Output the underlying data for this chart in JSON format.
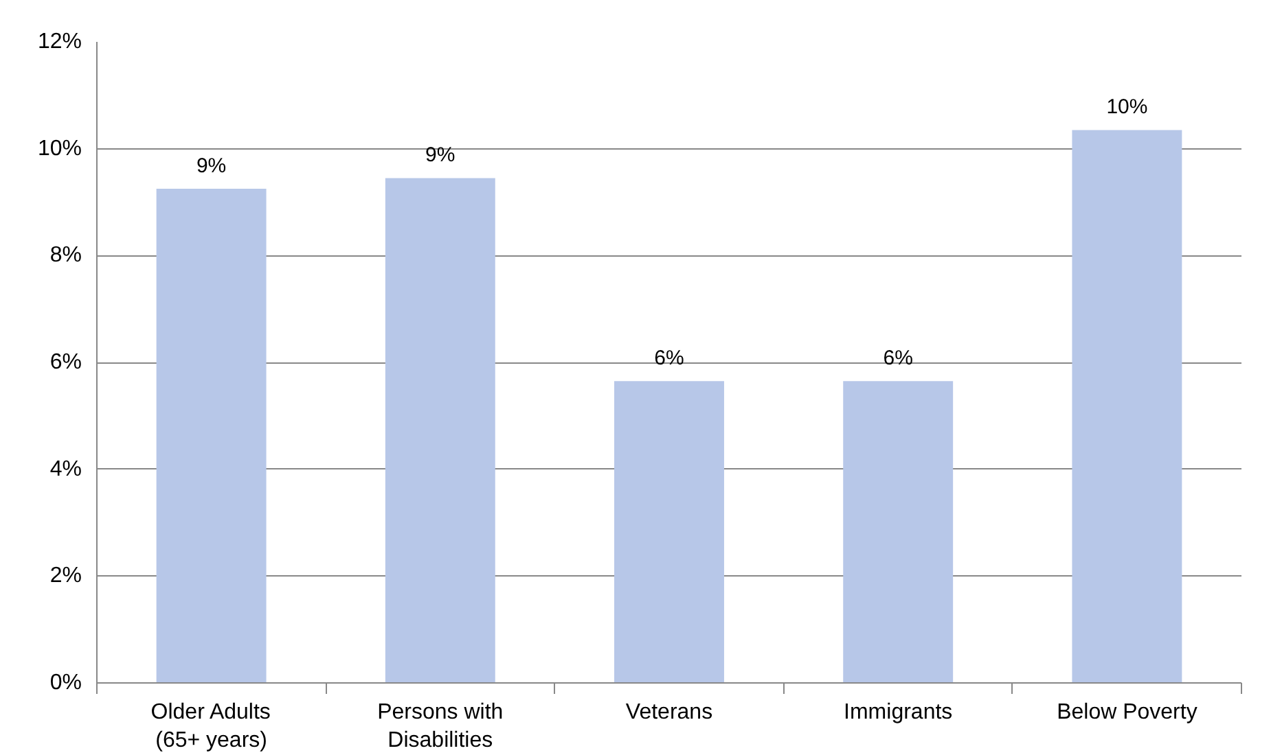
{
  "chart_data": {
    "type": "bar",
    "categories": [
      "Older Adults\n(65+ years)",
      "Persons with\nDisabilities",
      "Veterans",
      "Immigrants",
      "Below Poverty"
    ],
    "values": [
      9.25,
      9.45,
      5.65,
      5.65,
      10.35
    ],
    "value_labels": [
      "9%",
      "9%",
      "6%",
      "6%",
      "10%"
    ],
    "color": "#b7c7e8",
    "ylim": [
      0,
      12
    ],
    "yticks": [
      {
        "value": 0,
        "label": "0%"
      },
      {
        "value": 2,
        "label": "2%"
      },
      {
        "value": 4,
        "label": "4%"
      },
      {
        "value": 6,
        "label": "6%"
      },
      {
        "value": 8,
        "label": "8%"
      },
      {
        "value": 10,
        "label": "10%"
      },
      {
        "value": 12,
        "label": "12%"
      }
    ],
    "grid": "y"
  }
}
